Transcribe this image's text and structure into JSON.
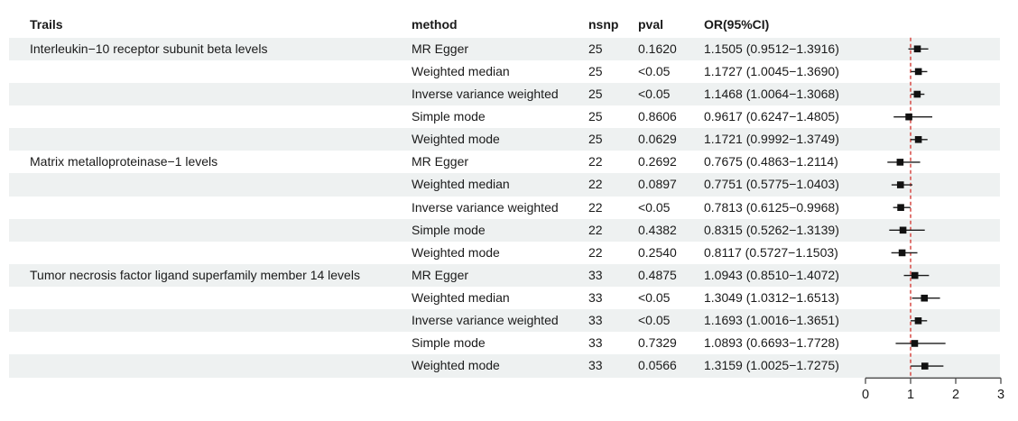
{
  "header": {
    "trail": "Trails",
    "method": "method",
    "nsnp": "nsnp",
    "pval": "pval",
    "or_ci": "OR(95%CI)"
  },
  "colors": {
    "stripe": "#eef1f1",
    "text": "#1a1a1a",
    "reference_line": "#d9544f",
    "marker": "#111111",
    "ci_line": "#1a1a1a",
    "axis": "#4a4a4a"
  },
  "chart_data": {
    "type": "scatter",
    "subtype": "forest-plot",
    "title": "",
    "xlabel": "",
    "ylabel": "",
    "x_axis": {
      "range": [
        0,
        3
      ],
      "tick_labels": [
        "0",
        "1",
        "2",
        "3"
      ],
      "tick_values": [
        0,
        1,
        2,
        3
      ]
    },
    "reference_line_x": 1,
    "grid": false,
    "legend": "none",
    "rows": [
      {
        "trail": "Interleukin−10 receptor subunit beta levels",
        "method": "MR Egger",
        "nsnp": "25",
        "pval": "0.1620",
        "or_text": "1.1505 (0.9512−1.3916)",
        "or": 1.1505,
        "ci_low": 0.9512,
        "ci_high": 1.3916
      },
      {
        "trail": "",
        "method": "Weighted median",
        "nsnp": "25",
        "pval": "<0.05",
        "or_text": "1.1727 (1.0045−1.3690)",
        "or": 1.1727,
        "ci_low": 1.0045,
        "ci_high": 1.369
      },
      {
        "trail": "",
        "method": "Inverse variance weighted",
        "nsnp": "25",
        "pval": "<0.05",
        "or_text": "1.1468 (1.0064−1.3068)",
        "or": 1.1468,
        "ci_low": 1.0064,
        "ci_high": 1.3068
      },
      {
        "trail": "",
        "method": "Simple mode",
        "nsnp": "25",
        "pval": "0.8606",
        "or_text": "0.9617 (0.6247−1.4805)",
        "or": 0.9617,
        "ci_low": 0.6247,
        "ci_high": 1.4805
      },
      {
        "trail": "",
        "method": "Weighted mode",
        "nsnp": "25",
        "pval": "0.0629",
        "or_text": "1.1721 (0.9992−1.3749)",
        "or": 1.1721,
        "ci_low": 0.9992,
        "ci_high": 1.3749
      },
      {
        "trail": "Matrix metalloproteinase−1 levels",
        "method": "MR Egger",
        "nsnp": "22",
        "pval": "0.2692",
        "or_text": "0.7675 (0.4863−1.2114)",
        "or": 0.7675,
        "ci_low": 0.4863,
        "ci_high": 1.2114
      },
      {
        "trail": "",
        "method": "Weighted median",
        "nsnp": "22",
        "pval": "0.0897",
        "or_text": "0.7751 (0.5775−1.0403)",
        "or": 0.7751,
        "ci_low": 0.5775,
        "ci_high": 1.0403
      },
      {
        "trail": "",
        "method": "Inverse variance weighted",
        "nsnp": "22",
        "pval": "<0.05",
        "or_text": "0.7813 (0.6125−0.9968)",
        "or": 0.7813,
        "ci_low": 0.6125,
        "ci_high": 0.9968
      },
      {
        "trail": "",
        "method": "Simple mode",
        "nsnp": "22",
        "pval": "0.4382",
        "or_text": "0.8315 (0.5262−1.3139)",
        "or": 0.8315,
        "ci_low": 0.5262,
        "ci_high": 1.3139
      },
      {
        "trail": "",
        "method": "Weighted mode",
        "nsnp": "22",
        "pval": "0.2540",
        "or_text": "0.8117 (0.5727−1.1503)",
        "or": 0.8117,
        "ci_low": 0.5727,
        "ci_high": 1.1503
      },
      {
        "trail": "Tumor necrosis factor ligand superfamily member 14 levels",
        "method": "MR Egger",
        "nsnp": "33",
        "pval": "0.4875",
        "or_text": "1.0943 (0.8510−1.4072)",
        "or": 1.0943,
        "ci_low": 0.851,
        "ci_high": 1.4072
      },
      {
        "trail": "",
        "method": "Weighted median",
        "nsnp": "33",
        "pval": "<0.05",
        "or_text": "1.3049 (1.0312−1.6513)",
        "or": 1.3049,
        "ci_low": 1.0312,
        "ci_high": 1.6513
      },
      {
        "trail": "",
        "method": "Inverse variance weighted",
        "nsnp": "33",
        "pval": "<0.05",
        "or_text": "1.1693 (1.0016−1.3651)",
        "or": 1.1693,
        "ci_low": 1.0016,
        "ci_high": 1.3651
      },
      {
        "trail": "",
        "method": "Simple mode",
        "nsnp": "33",
        "pval": "0.7329",
        "or_text": "1.0893 (0.6693−1.7728)",
        "or": 1.0893,
        "ci_low": 0.6693,
        "ci_high": 1.7728
      },
      {
        "trail": "",
        "method": "Weighted mode",
        "nsnp": "33",
        "pval": "0.0566",
        "or_text": "1.3159 (1.0025−1.7275)",
        "or": 1.3159,
        "ci_low": 1.0025,
        "ci_high": 1.7275
      }
    ]
  }
}
